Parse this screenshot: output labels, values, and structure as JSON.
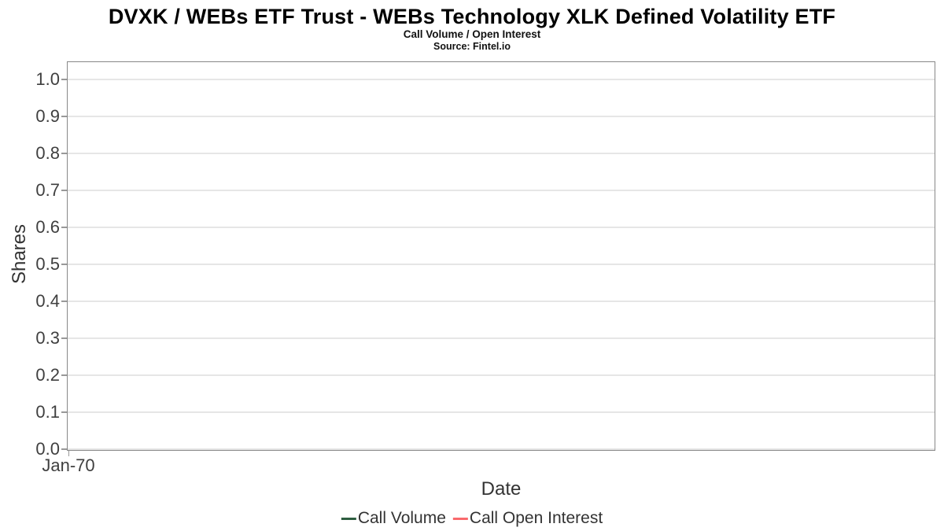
{
  "chart_data": {
    "type": "line",
    "title": "DVXK / WEBs ETF Trust - WEBs Technology XLK Defined Volatility ETF",
    "subtitle": "Call Volume / Open Interest",
    "source": "Source: Fintel.io",
    "xlabel": "Date",
    "ylabel": "Shares",
    "ylim": [
      0,
      1.05
    ],
    "grid": "horizontal-only",
    "legend_position": "bottom-center",
    "plot_bg": "#ffffff",
    "grid_color": "#e6e6e6",
    "border_color": "#888888",
    "tick_text_color": "#3f3f3f",
    "axis_title_color": "#333333",
    "y_ticks": [
      {
        "label": "0.0",
        "value": 0.0
      },
      {
        "label": "0.1",
        "value": 0.1
      },
      {
        "label": "0.2",
        "value": 0.2
      },
      {
        "label": "0.3",
        "value": 0.3
      },
      {
        "label": "0.4",
        "value": 0.4
      },
      {
        "label": "0.5",
        "value": 0.5
      },
      {
        "label": "0.6",
        "value": 0.6
      },
      {
        "label": "0.7",
        "value": 0.7
      },
      {
        "label": "0.8",
        "value": 0.8
      },
      {
        "label": "0.9",
        "value": 0.9
      },
      {
        "label": "1.0",
        "value": 1.0
      }
    ],
    "x_ticks": [
      {
        "label": "Jan-70",
        "position": 0.0
      }
    ],
    "series": [
      {
        "name": "Call Volume",
        "color": "#2e5e41",
        "values": []
      },
      {
        "name": "Call Open Interest",
        "color": "#f9696c",
        "values": []
      }
    ]
  }
}
